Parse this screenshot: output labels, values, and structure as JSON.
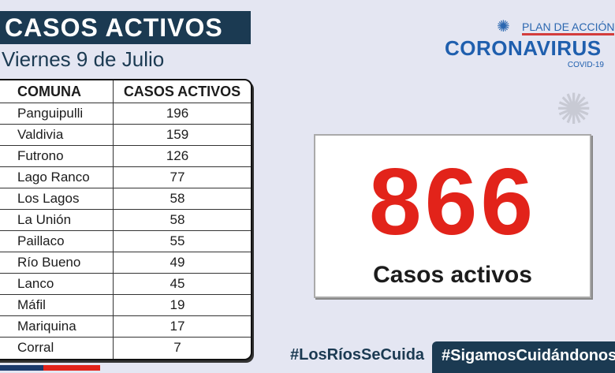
{
  "header": {
    "title": "CASOS ACTIVOS",
    "date": "Viernes 9 de Julio"
  },
  "table": {
    "columns": [
      "COMUNA",
      "CASOS ACTIVOS"
    ],
    "rows": [
      [
        "Panguipulli",
        "196"
      ],
      [
        "Valdivia",
        "159"
      ],
      [
        "Futrono",
        "126"
      ],
      [
        "Lago Ranco",
        "77"
      ],
      [
        "Los Lagos",
        "58"
      ],
      [
        "La Unión",
        "58"
      ],
      [
        "Paillaco",
        "55"
      ],
      [
        "Río Bueno",
        "49"
      ],
      [
        "Lanco",
        "45"
      ],
      [
        "Máfil",
        "19"
      ],
      [
        "Mariquina",
        "17"
      ],
      [
        "Corral",
        "7"
      ]
    ]
  },
  "logo": {
    "plan": "PLAN DE ACCIÓN",
    "name": "CORONAVIRUS",
    "sub": "COVID-19",
    "icon": "virus-icon"
  },
  "total": {
    "value": "866",
    "label": "Casos activos",
    "color": "#e2231a"
  },
  "hashtags": [
    "#LosRíosSeCuida",
    "#SigamosCuidándonos"
  ],
  "colors": {
    "navy": "#1b3a52",
    "red": "#e2231a",
    "blue": "#1f5fae"
  }
}
